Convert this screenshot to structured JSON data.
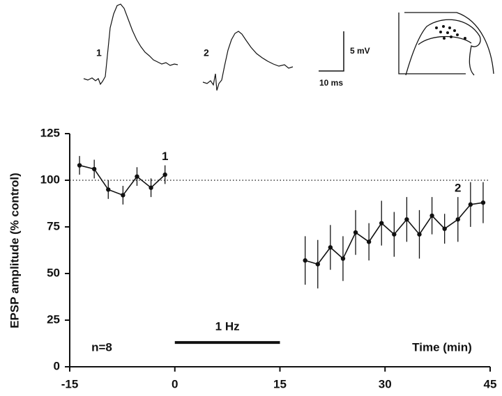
{
  "chart_data": {
    "type": "line",
    "ylabel": "EPSP amplitude (% control)",
    "xlabel": "Time (min)",
    "note": "n=8",
    "stimulus": {
      "label": "1 Hz",
      "x": [
        0,
        15
      ],
      "y": 13
    },
    "reference_line": 100,
    "point_labels": [
      {
        "text": "1",
        "series": 0,
        "index": 6
      },
      {
        "text": "2",
        "series": 1,
        "index": 12
      }
    ],
    "inset_labels": {
      "trace1": "1",
      "trace2": "2",
      "scale_y": "5 mV",
      "scale_x": "10 ms"
    },
    "series": [
      {
        "color": "#111111",
        "x": [
          -13.6,
          -11.5,
          -9.5,
          -7.4,
          -5.4,
          -3.4,
          -1.4
        ],
        "values": [
          108,
          106,
          95,
          92,
          102,
          96,
          103
        ],
        "errors": [
          5,
          5,
          5,
          5,
          5,
          5,
          5
        ]
      },
      {
        "color": "#111111",
        "x": [
          18.6,
          20.4,
          22.2,
          24.0,
          25.8,
          27.7,
          29.5,
          31.3,
          33.1,
          34.9,
          36.7,
          38.5,
          40.4,
          42.2,
          44.0
        ],
        "values": [
          57,
          55,
          64,
          58,
          72,
          67,
          77,
          71,
          79,
          71,
          81,
          74,
          79,
          87,
          88
        ],
        "errors": [
          13,
          13,
          12,
          12,
          12,
          10,
          12,
          12,
          12,
          13,
          10,
          8,
          12,
          12,
          11
        ]
      }
    ],
    "xlim": [
      -15,
      45
    ],
    "xticks": [
      -15,
      0,
      15,
      30,
      45
    ],
    "ylim": [
      0,
      125
    ],
    "yticks": [
      0,
      25,
      50,
      75,
      100,
      125
    ]
  }
}
